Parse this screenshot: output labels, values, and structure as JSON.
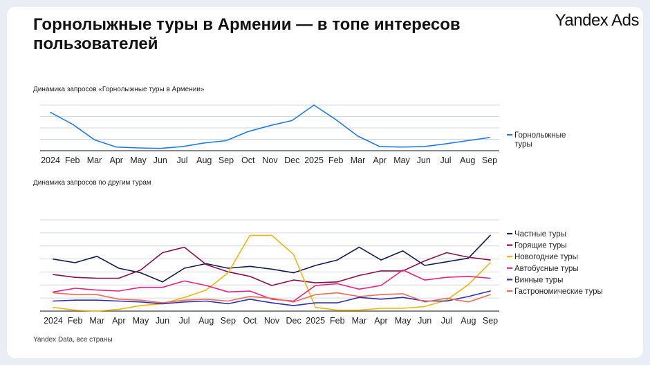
{
  "title": "Горнолыжные туры в Армении — в топе интересов пользователей",
  "brand": "Yandex Ads",
  "footer": "Yandex Data, все страны",
  "chart_data": [
    {
      "type": "line",
      "title": "Динамика запросов «Горнолыжные туры в Армении»",
      "categories": [
        "2024",
        "Feb",
        "Mar",
        "Apr",
        "May",
        "Jun",
        "Jul",
        "Aug",
        "Sep",
        "Oct",
        "Nov",
        "Dec",
        "2025",
        "Feb",
        "Mar",
        "Apr",
        "May",
        "Jun",
        "Jul",
        "Aug",
        "Sep"
      ],
      "ylim": [
        0,
        100
      ],
      "grid": true,
      "legend_position": "right",
      "series": [
        {
          "name": "Горнолыжные туры",
          "color": "#1f7ae8",
          "values": [
            84,
            58,
            24,
            8,
            6,
            5,
            9,
            17,
            22,
            42,
            55,
            66,
            100,
            68,
            32,
            9,
            8,
            9,
            15,
            22,
            29
          ]
        }
      ]
    },
    {
      "type": "line",
      "title": "Динамика запросов по другим турам",
      "categories": [
        "2024",
        "Feb",
        "Mar",
        "Apr",
        "May",
        "Jun",
        "Jul",
        "Aug",
        "Sep",
        "Oct",
        "Nov",
        "Dec",
        "2025",
        "Feb",
        "Mar",
        "Apr",
        "May",
        "Jun",
        "Jul",
        "Aug",
        "Sep"
      ],
      "ylim": [
        0,
        100
      ],
      "grid": true,
      "legend_position": "right",
      "series": [
        {
          "name": "Частные туры",
          "color": "#0f1c4d",
          "values": [
            57,
            53,
            60,
            47,
            42,
            32,
            47,
            52,
            47,
            49,
            46,
            42,
            50,
            56,
            70,
            56,
            66,
            50,
            54,
            58,
            83
          ]
        },
        {
          "name": "Горящие туры",
          "color": "#8b0e4a",
          "values": [
            40,
            37,
            36,
            36,
            45,
            64,
            70,
            51,
            43,
            38,
            28,
            34,
            31,
            32,
            39,
            44,
            44,
            55,
            64,
            59,
            56
          ]
        },
        {
          "name": "Новогодние туры",
          "color": "#f2b40c",
          "values": [
            4,
            1,
            0,
            2,
            6,
            8,
            15,
            23,
            42,
            83,
            83,
            62,
            4,
            1,
            1,
            3,
            3,
            5,
            12,
            29,
            53
          ]
        },
        {
          "name": "Автобусные туры",
          "color": "#e8227f",
          "values": [
            21,
            25,
            23,
            22,
            26,
            26,
            33,
            28,
            21,
            22,
            13,
            11,
            28,
            30,
            24,
            28,
            45,
            34,
            37,
            38,
            36
          ]
        },
        {
          "name": "Винные туры",
          "color": "#2e2eb0",
          "values": [
            11,
            12,
            12,
            11,
            10,
            8,
            10,
            11,
            8,
            13,
            9,
            6,
            9,
            9,
            15,
            13,
            15,
            11,
            11,
            16,
            22
          ]
        },
        {
          "name": "Гастрономические туры",
          "color": "#ef6a55",
          "values": [
            20,
            18,
            18,
            13,
            12,
            9,
            12,
            13,
            11,
            16,
            14,
            10,
            18,
            20,
            16,
            18,
            19,
            10,
            14,
            10,
            18
          ]
        }
      ]
    }
  ]
}
